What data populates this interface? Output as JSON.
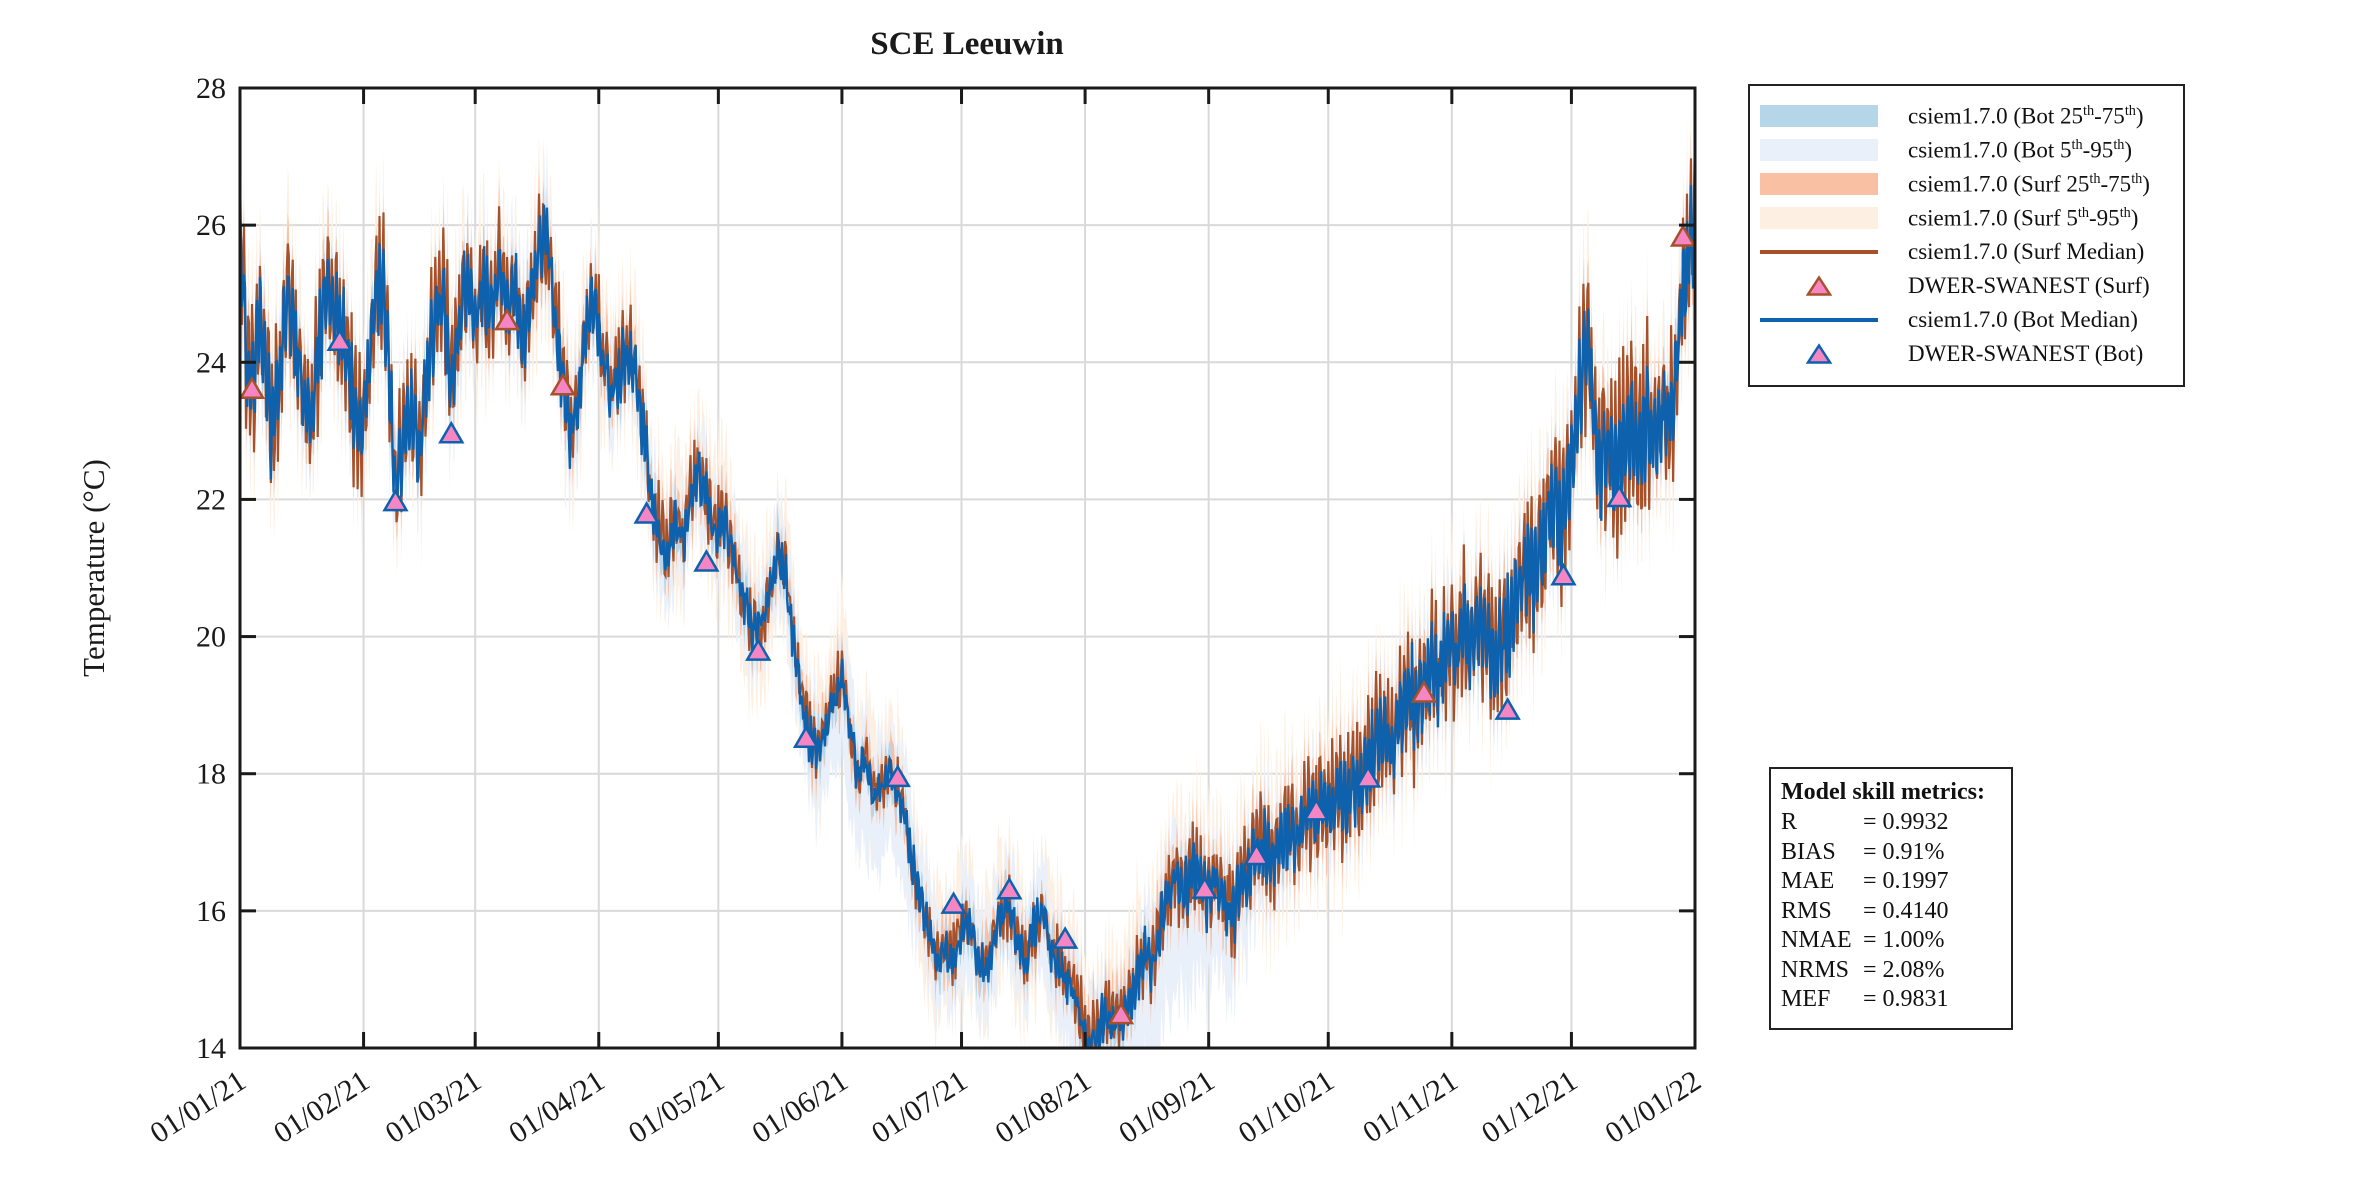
{
  "chart_data": {
    "type": "line",
    "title": "SCE Leeuwin",
    "xlabel": "",
    "ylabel": "Temperature (°C)",
    "ylim": [
      14,
      28
    ],
    "yticks": [
      14,
      16,
      18,
      20,
      22,
      24,
      26,
      28
    ],
    "grid": true,
    "legend_position": "outside-right",
    "xticks": [
      {
        "label": "01/01/21",
        "day": 0
      },
      {
        "label": "01/02/21",
        "day": 31
      },
      {
        "label": "01/03/21",
        "day": 59
      },
      {
        "label": "01/04/21",
        "day": 90
      },
      {
        "label": "01/05/21",
        "day": 120
      },
      {
        "label": "01/06/21",
        "day": 151
      },
      {
        "label": "01/07/21",
        "day": 181
      },
      {
        "label": "01/08/21",
        "day": 212
      },
      {
        "label": "01/09/21",
        "day": 243
      },
      {
        "label": "01/10/21",
        "day": 273
      },
      {
        "label": "01/11/21",
        "day": 304
      },
      {
        "label": "01/12/21",
        "day": 334
      },
      {
        "label": "01/01/22",
        "day": 365
      }
    ],
    "median_anchors_day_temp": [
      [
        0,
        26.0
      ],
      [
        1,
        24.6
      ],
      [
        2,
        23.9
      ],
      [
        3,
        23.6
      ],
      [
        4,
        24.1
      ],
      [
        5,
        24.7
      ],
      [
        7,
        23.6
      ],
      [
        8,
        23.0
      ],
      [
        10,
        23.9
      ],
      [
        12,
        25.0
      ],
      [
        14,
        24.4
      ],
      [
        16,
        23.4
      ],
      [
        18,
        23.2
      ],
      [
        20,
        24.4
      ],
      [
        22,
        25.1
      ],
      [
        24,
        24.6
      ],
      [
        26,
        24.4
      ],
      [
        28,
        23.5
      ],
      [
        30,
        22.9
      ],
      [
        32,
        23.7
      ],
      [
        34,
        24.9
      ],
      [
        36,
        25.2
      ],
      [
        38,
        23.3
      ],
      [
        39,
        22.1
      ],
      [
        41,
        22.9
      ],
      [
        43,
        23.3
      ],
      [
        45,
        22.7
      ],
      [
        47,
        23.8
      ],
      [
        49,
        24.7
      ],
      [
        51,
        25.0
      ],
      [
        53,
        23.6
      ],
      [
        55,
        24.6
      ],
      [
        57,
        25.2
      ],
      [
        59,
        24.5
      ],
      [
        61,
        25.2
      ],
      [
        63,
        24.7
      ],
      [
        65,
        25.4
      ],
      [
        67,
        24.7
      ],
      [
        69,
        25.1
      ],
      [
        71,
        24.3
      ],
      [
        73,
        25.0
      ],
      [
        75,
        25.6
      ],
      [
        77,
        25.8
      ],
      [
        79,
        24.7
      ],
      [
        81,
        23.7
      ],
      [
        83,
        22.9
      ],
      [
        85,
        23.5
      ],
      [
        87,
        24.6
      ],
      [
        89,
        24.8
      ],
      [
        91,
        24.1
      ],
      [
        93,
        23.5
      ],
      [
        95,
        23.8
      ],
      [
        97,
        24.2
      ],
      [
        99,
        23.9
      ],
      [
        101,
        23.1
      ],
      [
        103,
        22.1
      ],
      [
        105,
        21.5
      ],
      [
        107,
        21.2
      ],
      [
        109,
        21.7
      ],
      [
        111,
        21.4
      ],
      [
        113,
        22.0
      ],
      [
        115,
        22.4
      ],
      [
        117,
        22.1
      ],
      [
        119,
        21.5
      ],
      [
        121,
        21.8
      ],
      [
        123,
        21.4
      ],
      [
        125,
        20.8
      ],
      [
        127,
        20.4
      ],
      [
        129,
        20.0
      ],
      [
        131,
        20.2
      ],
      [
        133,
        20.7
      ],
      [
        135,
        21.2
      ],
      [
        137,
        20.9
      ],
      [
        139,
        19.8
      ],
      [
        141,
        19.0
      ],
      [
        143,
        18.5
      ],
      [
        145,
        18.3
      ],
      [
        147,
        18.6
      ],
      [
        149,
        19.1
      ],
      [
        151,
        19.4
      ],
      [
        153,
        18.7
      ],
      [
        155,
        17.9
      ],
      [
        157,
        18.2
      ],
      [
        159,
        17.7
      ],
      [
        161,
        17.9
      ],
      [
        163,
        18.0
      ],
      [
        165,
        17.8
      ],
      [
        167,
        17.2
      ],
      [
        169,
        16.6
      ],
      [
        171,
        16.1
      ],
      [
        173,
        15.6
      ],
      [
        175,
        15.3
      ],
      [
        177,
        15.5
      ],
      [
        179,
        15.3
      ],
      [
        181,
        15.7
      ],
      [
        183,
        15.9
      ],
      [
        185,
        15.3
      ],
      [
        187,
        15.2
      ],
      [
        189,
        15.6
      ],
      [
        191,
        15.9
      ],
      [
        193,
        16.0
      ],
      [
        195,
        15.6
      ],
      [
        197,
        15.3
      ],
      [
        199,
        15.7
      ],
      [
        201,
        16.0
      ],
      [
        203,
        15.6
      ],
      [
        205,
        15.2
      ],
      [
        207,
        15.1
      ],
      [
        209,
        14.8
      ],
      [
        211,
        14.4
      ],
      [
        213,
        14.1
      ],
      [
        215,
        14.2
      ],
      [
        217,
        14.5
      ],
      [
        219,
        14.4
      ],
      [
        221,
        14.5
      ],
      [
        223,
        14.6
      ],
      [
        225,
        15.0
      ],
      [
        227,
        15.4
      ],
      [
        229,
        15.2
      ],
      [
        231,
        15.8
      ],
      [
        233,
        16.3
      ],
      [
        235,
        16.5
      ],
      [
        237,
        16.3
      ],
      [
        239,
        16.6
      ],
      [
        241,
        16.4
      ],
      [
        243,
        16.2
      ],
      [
        245,
        16.5
      ],
      [
        247,
        16.1
      ],
      [
        249,
        15.9
      ],
      [
        251,
        16.3
      ],
      [
        253,
        16.6
      ],
      [
        255,
        16.9
      ],
      [
        257,
        17.0
      ],
      [
        259,
        16.7
      ],
      [
        261,
        16.9
      ],
      [
        263,
        17.2
      ],
      [
        265,
        17.0
      ],
      [
        267,
        17.3
      ],
      [
        269,
        17.4
      ],
      [
        271,
        17.5
      ],
      [
        273,
        17.4
      ],
      [
        275,
        17.7
      ],
      [
        277,
        17.6
      ],
      [
        279,
        17.9
      ],
      [
        281,
        17.8
      ],
      [
        283,
        18.1
      ],
      [
        285,
        18.4
      ],
      [
        287,
        18.6
      ],
      [
        289,
        18.4
      ],
      [
        291,
        18.9
      ],
      [
        293,
        19.2
      ],
      [
        295,
        18.9
      ],
      [
        297,
        19.2
      ],
      [
        299,
        19.6
      ],
      [
        301,
        19.4
      ],
      [
        303,
        19.9
      ],
      [
        305,
        19.7
      ],
      [
        307,
        20.1
      ],
      [
        309,
        19.8
      ],
      [
        311,
        20.2
      ],
      [
        313,
        20.0
      ],
      [
        315,
        19.7
      ],
      [
        317,
        19.9
      ],
      [
        319,
        20.3
      ],
      [
        321,
        20.7
      ],
      [
        323,
        21.1
      ],
      [
        325,
        20.9
      ],
      [
        327,
        21.4
      ],
      [
        329,
        21.9
      ],
      [
        331,
        21.6
      ],
      [
        333,
        22.1
      ],
      [
        335,
        23.0
      ],
      [
        337,
        24.0
      ],
      [
        338,
        24.5
      ],
      [
        339,
        23.6
      ],
      [
        341,
        22.4
      ],
      [
        343,
        22.7
      ],
      [
        345,
        22.4
      ],
      [
        347,
        22.8
      ],
      [
        349,
        23.1
      ],
      [
        351,
        22.7
      ],
      [
        353,
        23.2
      ],
      [
        355,
        22.9
      ],
      [
        357,
        23.3
      ],
      [
        359,
        23.1
      ],
      [
        360,
        23.7
      ],
      [
        361,
        24.3
      ],
      [
        362,
        25.0
      ],
      [
        363,
        25.5
      ],
      [
        364,
        25.8
      ],
      [
        365,
        25.9
      ]
    ],
    "bands_estimate": {
      "p25_75_halfwidth_c": 0.35,
      "p5_95_halfwidth_c": 0.9,
      "bot_low_extra_aug_sep_c": 1.3
    },
    "observations": {
      "surf": [
        {
          "date": "01/04/21",
          "day": 3,
          "temp": 23.6
        },
        {
          "date": "03/09/21",
          "day": 67,
          "temp": 24.6
        },
        {
          "date": "03/23/21",
          "day": 81,
          "temp": 23.65
        },
        {
          "date": "08/10/21",
          "day": 221,
          "temp": 14.48
        },
        {
          "date": "10/25/21",
          "day": 297,
          "temp": 19.17
        },
        {
          "date": "12/29/21",
          "day": 362,
          "temp": 25.82
        }
      ],
      "bot": [
        {
          "date": "01/26/21",
          "day": 25,
          "temp": 24.3
        },
        {
          "date": "02/09/21",
          "day": 39,
          "temp": 21.96
        },
        {
          "date": "02/23/21",
          "day": 53,
          "temp": 22.95
        },
        {
          "date": "04/13/21",
          "day": 102,
          "temp": 21.78
        },
        {
          "date": "04/28/21",
          "day": 117,
          "temp": 21.08
        },
        {
          "date": "05/11/21",
          "day": 130,
          "temp": 19.78
        },
        {
          "date": "05/23/21",
          "day": 142,
          "temp": 18.51
        },
        {
          "date": "06/15/21",
          "day": 165,
          "temp": 17.94
        },
        {
          "date": "06/29/21",
          "day": 179,
          "temp": 16.09
        },
        {
          "date": "07/13/21",
          "day": 193,
          "temp": 16.3
        },
        {
          "date": "07/27/21",
          "day": 207,
          "temp": 15.58
        },
        {
          "date": "08/31/21",
          "day": 242,
          "temp": 16.31
        },
        {
          "date": "09/13/21",
          "day": 255,
          "temp": 16.8
        },
        {
          "date": "09/28/21",
          "day": 270,
          "temp": 17.45
        },
        {
          "date": "10/11/21",
          "day": 283,
          "temp": 17.93
        },
        {
          "date": "11/15/21",
          "day": 318,
          "temp": 18.92
        },
        {
          "date": "11/29/21",
          "day": 332,
          "temp": 20.88
        },
        {
          "date": "12/13/21",
          "day": 346,
          "temp": 22.02
        }
      ]
    },
    "legend": [
      {
        "label": "csiem1.7.0 (Bot 25th-75th)",
        "swatch": "patch",
        "color": "#b5d5e9"
      },
      {
        "label": "csiem1.7.0 (Bot 5th-95th)",
        "swatch": "patch",
        "color": "#e9f0fa"
      },
      {
        "label": "csiem1.7.0 (Surf 25th-75th)",
        "swatch": "patch",
        "color": "#f9c0a4"
      },
      {
        "label": "csiem1.7.0 (Surf 5th-95th)",
        "swatch": "patch",
        "color": "#fdf0e2"
      },
      {
        "label": "csiem1.7.0 (Surf Median)",
        "swatch": "line",
        "color": "#a7512b"
      },
      {
        "label": "DWER-SWANEST (Surf)",
        "swatch": "marker",
        "color": "#f585c3",
        "edge": "#a7512b"
      },
      {
        "label": "csiem1.7.0 (Bot Median)",
        "swatch": "line",
        "color": "#0e61ad"
      },
      {
        "label": "DWER-SWANEST (Bot)",
        "swatch": "marker",
        "color": "#f585c3",
        "edge": "#0e61ad"
      }
    ],
    "metrics": {
      "title": "Model skill metrics:",
      "equals_sign": "=",
      "rows": [
        {
          "name": "R",
          "value": "0.9932"
        },
        {
          "name": "BIAS",
          "value": "0.91%"
        },
        {
          "name": "MAE",
          "value": "0.1997"
        },
        {
          "name": "RMS",
          "value": "0.4140"
        },
        {
          "name": "NMAE",
          "value": "1.00%"
        },
        {
          "name": "NRMS",
          "value": "2.08%"
        },
        {
          "name": "MEF",
          "value": "0.9831"
        }
      ]
    },
    "colors": {
      "bot_median": "#0e61ad",
      "surf_median": "#a7512b",
      "bot_iqr_band": "#b5d5e9",
      "bot_90_band": "#e9f0fa",
      "surf_iqr_band": "#f9c0a4",
      "surf_90_band": "#fdf0e2",
      "marker_fill": "#f585c3",
      "gridline": "#d9d9d9",
      "axis": "#1a1a1a"
    }
  }
}
